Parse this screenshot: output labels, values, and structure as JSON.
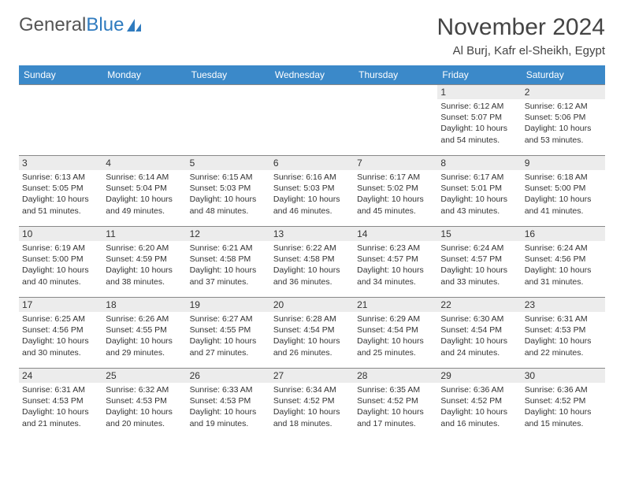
{
  "logo": {
    "text1": "General",
    "text2": "Blue"
  },
  "title": "November 2024",
  "location": "Al Burj, Kafr el-Sheikh, Egypt",
  "colors": {
    "header_bg": "#3b89c9",
    "header_text": "#ffffff",
    "daynum_bg": "#ececec",
    "border": "#888888",
    "text": "#333333",
    "logo_gray": "#555555",
    "logo_blue": "#2f7bbf",
    "page_bg": "#ffffff"
  },
  "weekdays": [
    "Sunday",
    "Monday",
    "Tuesday",
    "Wednesday",
    "Thursday",
    "Friday",
    "Saturday"
  ],
  "first_weekday_index": 5,
  "days": [
    {
      "n": 1,
      "sunrise": "6:12 AM",
      "sunset": "5:07 PM",
      "daylight": "10 hours and 54 minutes."
    },
    {
      "n": 2,
      "sunrise": "6:12 AM",
      "sunset": "5:06 PM",
      "daylight": "10 hours and 53 minutes."
    },
    {
      "n": 3,
      "sunrise": "6:13 AM",
      "sunset": "5:05 PM",
      "daylight": "10 hours and 51 minutes."
    },
    {
      "n": 4,
      "sunrise": "6:14 AM",
      "sunset": "5:04 PM",
      "daylight": "10 hours and 49 minutes."
    },
    {
      "n": 5,
      "sunrise": "6:15 AM",
      "sunset": "5:03 PM",
      "daylight": "10 hours and 48 minutes."
    },
    {
      "n": 6,
      "sunrise": "6:16 AM",
      "sunset": "5:03 PM",
      "daylight": "10 hours and 46 minutes."
    },
    {
      "n": 7,
      "sunrise": "6:17 AM",
      "sunset": "5:02 PM",
      "daylight": "10 hours and 45 minutes."
    },
    {
      "n": 8,
      "sunrise": "6:17 AM",
      "sunset": "5:01 PM",
      "daylight": "10 hours and 43 minutes."
    },
    {
      "n": 9,
      "sunrise": "6:18 AM",
      "sunset": "5:00 PM",
      "daylight": "10 hours and 41 minutes."
    },
    {
      "n": 10,
      "sunrise": "6:19 AM",
      "sunset": "5:00 PM",
      "daylight": "10 hours and 40 minutes."
    },
    {
      "n": 11,
      "sunrise": "6:20 AM",
      "sunset": "4:59 PM",
      "daylight": "10 hours and 38 minutes."
    },
    {
      "n": 12,
      "sunrise": "6:21 AM",
      "sunset": "4:58 PM",
      "daylight": "10 hours and 37 minutes."
    },
    {
      "n": 13,
      "sunrise": "6:22 AM",
      "sunset": "4:58 PM",
      "daylight": "10 hours and 36 minutes."
    },
    {
      "n": 14,
      "sunrise": "6:23 AM",
      "sunset": "4:57 PM",
      "daylight": "10 hours and 34 minutes."
    },
    {
      "n": 15,
      "sunrise": "6:24 AM",
      "sunset": "4:57 PM",
      "daylight": "10 hours and 33 minutes."
    },
    {
      "n": 16,
      "sunrise": "6:24 AM",
      "sunset": "4:56 PM",
      "daylight": "10 hours and 31 minutes."
    },
    {
      "n": 17,
      "sunrise": "6:25 AM",
      "sunset": "4:56 PM",
      "daylight": "10 hours and 30 minutes."
    },
    {
      "n": 18,
      "sunrise": "6:26 AM",
      "sunset": "4:55 PM",
      "daylight": "10 hours and 29 minutes."
    },
    {
      "n": 19,
      "sunrise": "6:27 AM",
      "sunset": "4:55 PM",
      "daylight": "10 hours and 27 minutes."
    },
    {
      "n": 20,
      "sunrise": "6:28 AM",
      "sunset": "4:54 PM",
      "daylight": "10 hours and 26 minutes."
    },
    {
      "n": 21,
      "sunrise": "6:29 AM",
      "sunset": "4:54 PM",
      "daylight": "10 hours and 25 minutes."
    },
    {
      "n": 22,
      "sunrise": "6:30 AM",
      "sunset": "4:54 PM",
      "daylight": "10 hours and 24 minutes."
    },
    {
      "n": 23,
      "sunrise": "6:31 AM",
      "sunset": "4:53 PM",
      "daylight": "10 hours and 22 minutes."
    },
    {
      "n": 24,
      "sunrise": "6:31 AM",
      "sunset": "4:53 PM",
      "daylight": "10 hours and 21 minutes."
    },
    {
      "n": 25,
      "sunrise": "6:32 AM",
      "sunset": "4:53 PM",
      "daylight": "10 hours and 20 minutes."
    },
    {
      "n": 26,
      "sunrise": "6:33 AM",
      "sunset": "4:53 PM",
      "daylight": "10 hours and 19 minutes."
    },
    {
      "n": 27,
      "sunrise": "6:34 AM",
      "sunset": "4:52 PM",
      "daylight": "10 hours and 18 minutes."
    },
    {
      "n": 28,
      "sunrise": "6:35 AM",
      "sunset": "4:52 PM",
      "daylight": "10 hours and 17 minutes."
    },
    {
      "n": 29,
      "sunrise": "6:36 AM",
      "sunset": "4:52 PM",
      "daylight": "10 hours and 16 minutes."
    },
    {
      "n": 30,
      "sunrise": "6:36 AM",
      "sunset": "4:52 PM",
      "daylight": "10 hours and 15 minutes."
    }
  ]
}
